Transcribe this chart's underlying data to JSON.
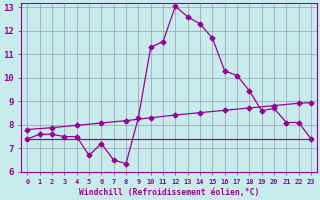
{
  "xlabel": "Windchill (Refroidissement éolien,°C)",
  "bg_color": "#c8ecec",
  "line_color": "#990099",
  "grid_color": "#9999bb",
  "xlim": [
    -0.5,
    23.5
  ],
  "ylim": [
    6,
    13.2
  ],
  "yticks": [
    6,
    7,
    8,
    9,
    10,
    11,
    12,
    13
  ],
  "xticks": [
    0,
    1,
    2,
    3,
    4,
    5,
    6,
    7,
    8,
    9,
    10,
    11,
    12,
    13,
    14,
    15,
    16,
    17,
    18,
    19,
    20,
    21,
    22,
    23
  ],
  "curve1_x": [
    0,
    1,
    2,
    3,
    4,
    5,
    6,
    7,
    8,
    9,
    10,
    11,
    12,
    13,
    14,
    15,
    16,
    17,
    18,
    19,
    20,
    21,
    22,
    23
  ],
  "curve1_y": [
    7.4,
    7.6,
    7.6,
    7.5,
    7.5,
    6.7,
    7.2,
    6.5,
    6.35,
    8.3,
    11.3,
    11.55,
    13.05,
    12.6,
    12.3,
    11.7,
    10.3,
    10.1,
    9.45,
    8.6,
    8.7,
    8.1,
    8.1,
    7.4
  ],
  "curve2_x": [
    0,
    23
  ],
  "curve2_y": [
    7.4,
    7.4
  ],
  "curve3_x": [
    0,
    2,
    4,
    6,
    8,
    10,
    12,
    14,
    16,
    18,
    20,
    22,
    23
  ],
  "curve3_y": [
    7.8,
    7.88,
    7.98,
    8.08,
    8.18,
    8.3,
    8.42,
    8.52,
    8.62,
    8.72,
    8.82,
    8.92,
    8.95
  ],
  "marker": "D",
  "markersize": 2.5,
  "linewidth": 0.9,
  "font_size_x": 5.0,
  "font_size_y": 6.5,
  "xlabel_size": 5.8,
  "font_color": "#990099"
}
